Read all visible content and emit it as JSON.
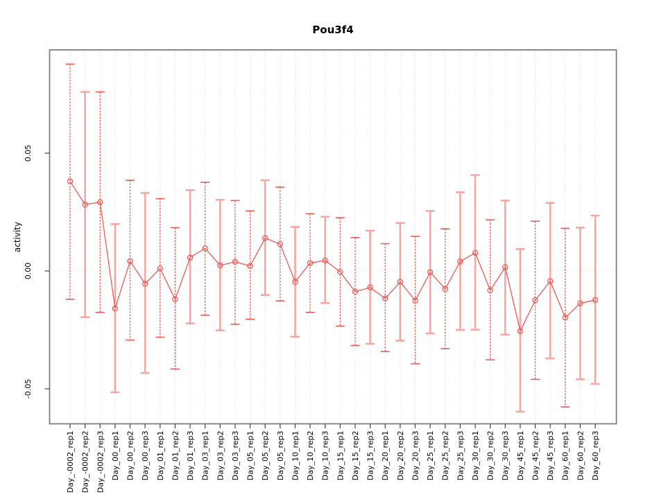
{
  "title": "Pou3f4",
  "chart_data": {
    "type": "scatter",
    "title": "Pou3f4",
    "xlabel": "",
    "ylabel": "activity",
    "legend": "none",
    "grid": "dotted vertical gridline at every category; dotted horizontal line at y=0",
    "ylim": [
      -0.065,
      0.094
    ],
    "yticks": [
      {
        "value": -0.05,
        "label": "-0.05"
      },
      {
        "value": 0.0,
        "label": "0.00"
      },
      {
        "value": 0.05,
        "label": "0.05"
      }
    ],
    "categories": [
      "Day_-0002_rep1",
      "Day_-0002_rep2",
      "Day_-0002_rep3",
      "Day_00_rep1",
      "Day_00_rep2",
      "Day_00_rep3",
      "Day_01_rep1",
      "Day_01_rep2",
      "Day_01_rep3",
      "Day_03_rep1",
      "Day_03_rep2",
      "Day_03_rep3",
      "Day_05_rep1",
      "Day_05_rep2",
      "Day_05_rep3",
      "Day_10_rep1",
      "Day_10_rep2",
      "Day_10_rep3",
      "Day_15_rep1",
      "Day_15_rep2",
      "Day_15_rep3",
      "Day_20_rep1",
      "Day_20_rep2",
      "Day_20_rep3",
      "Day_25_rep1",
      "Day_25_rep2",
      "Day_25_rep3",
      "Day_30_rep1",
      "Day_30_rep2",
      "Day_30_rep3",
      "Day_45_rep1",
      "Day_45_rep2",
      "Day_45_rep3",
      "Day_60_rep1",
      "Day_60_rep2",
      "Day_60_rep3"
    ],
    "series": [
      {
        "name": "activity (mean with error bars)",
        "values": [
          0.038,
          0.0282,
          0.0292,
          -0.0159,
          0.0042,
          -0.0054,
          0.0011,
          -0.012,
          0.0057,
          0.0096,
          0.0024,
          0.0039,
          0.0021,
          0.014,
          0.0114,
          -0.0046,
          0.0034,
          0.0045,
          -0.0004,
          -0.0088,
          -0.007,
          -0.0117,
          -0.0046,
          -0.0126,
          -0.0005,
          -0.0076,
          0.004,
          0.0077,
          -0.0082,
          0.0016,
          -0.0255,
          -0.0124,
          -0.0043,
          -0.0198,
          -0.0137,
          -0.0123
        ],
        "err_high": [
          0.0878,
          0.076,
          0.076,
          0.0199,
          0.0385,
          0.0331,
          0.0307,
          0.0184,
          0.0343,
          0.0376,
          0.0302,
          0.0299,
          0.0255,
          0.0385,
          0.0356,
          0.0187,
          0.0243,
          0.023,
          0.0226,
          0.0142,
          0.0171,
          0.0116,
          0.0204,
          0.0147,
          0.0255,
          0.0179,
          0.0334,
          0.0407,
          0.0217,
          0.0299,
          0.0093,
          0.0211,
          0.0289,
          0.0181,
          0.0184,
          0.0235
        ],
        "err_low": [
          -0.012,
          -0.0196,
          -0.0176,
          -0.0515,
          -0.0293,
          -0.0433,
          -0.0281,
          -0.0416,
          -0.0223,
          -0.0188,
          -0.0252,
          -0.0226,
          -0.0205,
          -0.0102,
          -0.0127,
          -0.0279,
          -0.0176,
          -0.0136,
          -0.0234,
          -0.0316,
          -0.0309,
          -0.0342,
          -0.0296,
          -0.0394,
          -0.0265,
          -0.033,
          -0.025,
          -0.0249,
          -0.0377,
          -0.027,
          -0.0597,
          -0.046,
          -0.0371,
          -0.0577,
          -0.046,
          -0.0479
        ]
      }
    ],
    "bar_styles": [
      "dashed",
      "pale",
      "dashed",
      "pale",
      "dashed",
      "pale",
      "dashed",
      "dashed",
      "pale",
      "dashed",
      "pale",
      "dashed",
      "dashed",
      "pale",
      "dashed",
      "pale",
      "dashed",
      "pale",
      "dashed",
      "dashed",
      "pale",
      "dashed",
      "pale",
      "dashed",
      "pale",
      "dashed",
      "pale",
      "pale",
      "dashed",
      "pale",
      "pale",
      "dashed",
      "pale",
      "dashed",
      "pale",
      "pale"
    ],
    "colors": {
      "point": "#ef5a55",
      "line": "#ef5a55",
      "error_bar_light": "#f6a7a2",
      "error_bar_dark": "#ea5b54",
      "grid": "#d9d9d9",
      "box": "#7d7d7d",
      "tick": "#404040",
      "text": "#000000"
    }
  }
}
